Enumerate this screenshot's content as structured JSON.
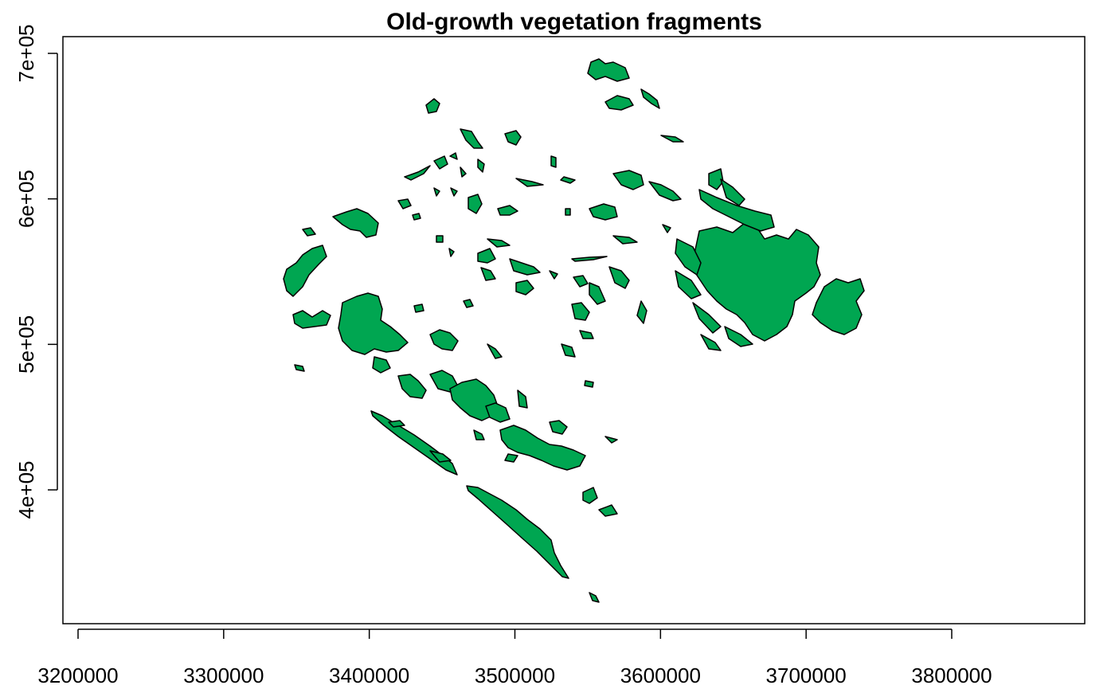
{
  "title": "Old-growth vegetation fragments",
  "colors": {
    "fill": "#00A651",
    "outline": "#000000",
    "background": "#ffffff"
  },
  "chart_data": {
    "type": "map",
    "title": "Old-growth vegetation fragments",
    "x_ticks": [
      "3200000",
      "3300000",
      "3400000",
      "3500000",
      "3600000",
      "3700000",
      "3800000"
    ],
    "y_ticks": [
      "4e+05",
      "5e+05",
      "6e+05",
      "7e+05"
    ],
    "x_tick_values": [
      3200000,
      3300000,
      3400000,
      3500000,
      3600000,
      3700000,
      3800000
    ],
    "y_tick_values": [
      400000,
      500000,
      600000,
      700000
    ],
    "xlim": [
      3190000,
      3890000
    ],
    "ylim": [
      310000,
      720000
    ],
    "layer": "old-growth vegetation fragments (polygons)"
  }
}
